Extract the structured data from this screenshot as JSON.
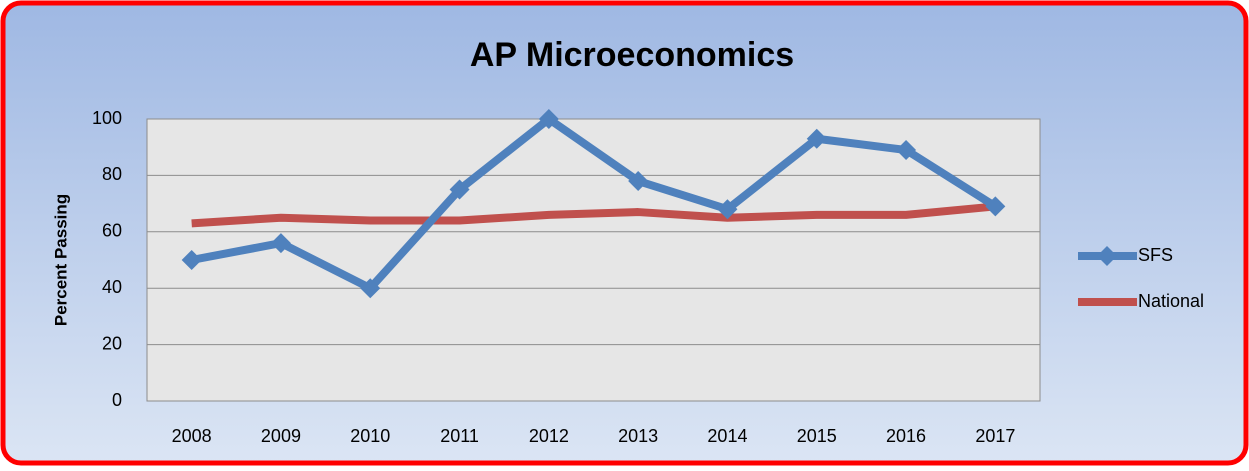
{
  "chart_data": {
    "type": "line",
    "title": "AP Microeconomics",
    "y_label": "Percent Passing",
    "categories": [
      "2008",
      "2009",
      "2010",
      "2011",
      "2012",
      "2013",
      "2014",
      "2015",
      "2016",
      "2017"
    ],
    "series": [
      {
        "name": "SFS",
        "color": "#4f81bd",
        "marker": "diamond",
        "values": [
          50,
          56,
          40,
          75,
          100,
          78,
          68,
          93,
          89,
          69
        ]
      },
      {
        "name": "National",
        "color": "#c0504d",
        "values": [
          63,
          65,
          64,
          64,
          66,
          67,
          65,
          66,
          66,
          69
        ]
      }
    ],
    "ylim": [
      0,
      100
    ],
    "yticks": [
      0,
      20,
      40,
      60,
      80,
      100
    ],
    "grid": true,
    "legend": "right"
  }
}
